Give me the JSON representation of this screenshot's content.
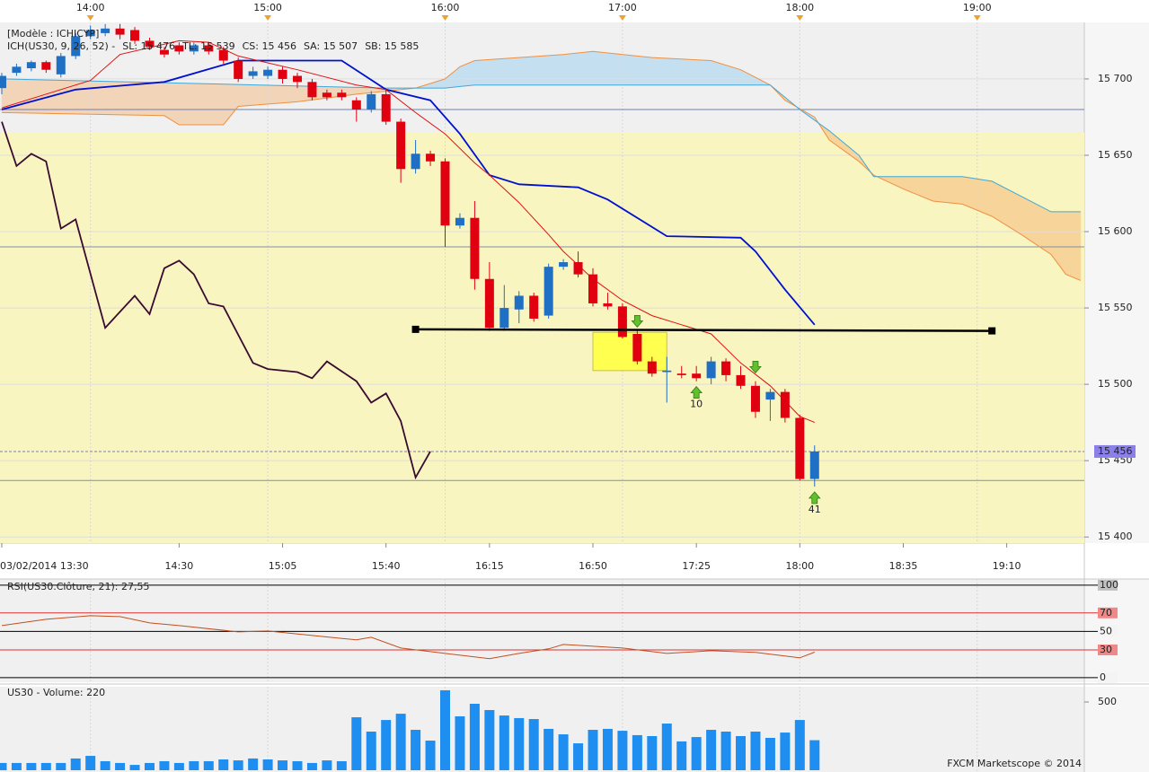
{
  "footer": "FXCM Marketscope © 2014",
  "chart_data": [
    {
      "type": "candlestick",
      "title": "[Modèle : ICHICYP]",
      "legend": [
        {
          "text": "ICH(US30, 9, 26, 52) -",
          "color": "#d00000"
        },
        {
          "text": "SL: 15 476",
          "color": "#d00000"
        },
        {
          "text": "TL: 15 539",
          "color": "#0000c0"
        },
        {
          "text": "CS: 15 456",
          "color": "#000000"
        },
        {
          "text": "SA: 15 507",
          "color": "#f08020"
        },
        {
          "text": "SB: 15 585",
          "color": "#30a0d0"
        }
      ],
      "up_color": "#1f6fc5",
      "down_color": "#e00010",
      "open": [
        15694,
        15704,
        15707,
        15711,
        15703,
        15715,
        15728,
        15730,
        15733,
        15732,
        15725,
        15719,
        15722,
        15718,
        15722,
        15719,
        15712,
        15702,
        15702,
        15706,
        15702,
        15698,
        15691,
        15691,
        15686,
        15680,
        15690,
        15672,
        15641,
        15651,
        15646,
        15604,
        15609,
        15569,
        15537,
        15549,
        15558,
        15545,
        15577,
        15580,
        15572,
        15553,
        15551,
        15533,
        15515,
        15508,
        15507,
        15507,
        15504,
        15515,
        15506,
        15499,
        15490,
        15495,
        15478,
        15438
      ],
      "high": [
        15704,
        15710,
        15712,
        15712,
        15717,
        15730,
        15735,
        15736,
        15736,
        15734,
        15727,
        15721,
        15724,
        15724,
        15724,
        15721,
        15714,
        15708,
        15708,
        15708,
        15704,
        15700,
        15693,
        15693,
        15688,
        15692,
        15694,
        15674,
        15660,
        15653,
        15648,
        15612,
        15620,
        15580,
        15565,
        15561,
        15560,
        15579,
        15582,
        15587,
        15576,
        15560,
        15553,
        15535,
        15518,
        15518,
        15512,
        15512,
        15518,
        15517,
        15512,
        15502,
        15497,
        15497,
        15480,
        15460
      ],
      "low": [
        15690,
        15702,
        15705,
        15704,
        15701,
        15713,
        15726,
        15728,
        15726,
        15723,
        15719,
        15714,
        15716,
        15716,
        15716,
        15710,
        15698,
        15700,
        15700,
        15697,
        15694,
        15686,
        15686,
        15686,
        15672,
        15678,
        15670,
        15632,
        15638,
        15643,
        15590,
        15602,
        15562,
        15535,
        15535,
        15540,
        15541,
        15543,
        15575,
        15570,
        15551,
        15549,
        15530,
        15513,
        15505,
        15488,
        15504,
        15502,
        15500,
        15502,
        15497,
        15478,
        15476,
        15475,
        15437,
        15433
      ],
      "close": [
        15702,
        15708,
        15711,
        15706,
        15715,
        15728,
        15732,
        15733,
        15729,
        15725,
        15721,
        15716,
        15718,
        15722,
        15718,
        15712,
        15700,
        15705,
        15706,
        15700,
        15698,
        15688,
        15688,
        15688,
        15680,
        15690,
        15672,
        15641,
        15651,
        15646,
        15604,
        15609,
        15569,
        15537,
        15550,
        15558,
        15543,
        15577,
        15580,
        15572,
        15553,
        15551,
        15531,
        15515,
        15507,
        15509,
        15506,
        15504,
        15515,
        15506,
        15499,
        15482,
        15495,
        15478,
        15438,
        15456
      ],
      "series": [
        {
          "name": "SA",
          "color": "#f09040",
          "x": [
            0,
            11,
            12,
            15,
            16,
            20,
            24,
            28,
            30,
            31,
            32,
            38,
            40,
            44,
            48,
            50,
            52,
            53,
            55,
            56,
            58,
            59,
            61,
            63,
            65,
            67,
            69,
            71,
            72,
            73
          ],
          "values": [
            15678,
            15676,
            15670,
            15670,
            15682,
            15685,
            15690,
            15694,
            15700,
            15708,
            15712,
            15716,
            15718,
            15714,
            15712,
            15706,
            15696,
            15686,
            15675,
            15660,
            15646,
            15637,
            15628,
            15620,
            15618,
            15610,
            15598,
            15585,
            15572,
            15568
          ]
        },
        {
          "name": "SB",
          "color": "#40a8d8",
          "x": [
            0,
            26,
            30,
            32,
            52,
            54,
            56,
            58,
            59,
            65,
            67,
            71,
            73
          ],
          "values": [
            15700,
            15694,
            15694,
            15696,
            15696,
            15680,
            15666,
            15650,
            15636,
            15636,
            15633,
            15613,
            15613
          ]
        },
        {
          "name": "CS",
          "color": "#3a0a30",
          "x": [
            0,
            1,
            2,
            3,
            4,
            5,
            7,
            9,
            10,
            11,
            12,
            13,
            14,
            15,
            17,
            18,
            20,
            21,
            22,
            24,
            25,
            26,
            27,
            28,
            29
          ],
          "values": [
            15672,
            15643,
            15651,
            15646,
            15602,
            15608,
            15537,
            15558,
            15546,
            15576,
            15581,
            15572,
            15553,
            15551,
            15514,
            15510,
            15508,
            15504,
            15515,
            15502,
            15488,
            15494,
            15476,
            15439,
            15456
          ]
        },
        {
          "name": "TL",
          "color": "#0010d0",
          "x": [
            0,
            5,
            11,
            16,
            23,
            26,
            29,
            31,
            33,
            35,
            39,
            41,
            45,
            50,
            51,
            53,
            55
          ],
          "values": [
            15680,
            15693,
            15698,
            15712,
            15712,
            15693,
            15686,
            15664,
            15637,
            15631,
            15629,
            15621,
            15597,
            15596,
            15587,
            15562,
            15539
          ]
        },
        {
          "name": "SL",
          "color": "#e01010",
          "x": [
            0,
            6,
            8,
            12,
            14,
            16,
            20,
            24,
            26,
            28,
            30,
            32,
            33,
            35,
            37,
            38,
            40,
            42,
            44,
            46,
            48,
            50,
            52,
            54,
            55
          ],
          "values": [
            15681,
            15699,
            15716,
            15725,
            15724,
            15715,
            15706,
            15696,
            15693,
            15678,
            15664,
            15645,
            15637,
            15619,
            15598,
            15587,
            15569,
            15555,
            15545,
            15539,
            15533,
            15514,
            15499,
            15479,
            15475
          ]
        }
      ],
      "band_top": 15665,
      "band_color": "#f8f5c0",
      "hlines": [
        {
          "value": 15680,
          "color": "#7080b0"
        },
        {
          "value": 15590,
          "color": "#8090a8"
        },
        {
          "value": 15437,
          "color": "#8090a8"
        }
      ],
      "last": {
        "value": 15456,
        "label": "15 456",
        "color": "#8a80e8"
      },
      "trendline": {
        "x": [
          28,
          67
        ],
        "values": [
          15536,
          15535
        ]
      },
      "highlight": {
        "x": [
          40,
          45
        ],
        "values": [
          15534,
          15509
        ],
        "color": "#ffff50"
      },
      "signals": [
        {
          "x": 43,
          "value": 15541,
          "direction": "down"
        },
        {
          "x": 51,
          "value": 15511,
          "direction": "down"
        },
        {
          "x": 47,
          "value": 15495,
          "direction": "up",
          "label": "10"
        },
        {
          "x": 55,
          "value": 15426,
          "direction": "up",
          "label": "41"
        }
      ],
      "xlim": [
        -0.12,
        73.25
      ],
      "ylim": [
        15396,
        15737
      ],
      "yticks": [
        {
          "value": 15400,
          "label": "15 400"
        },
        {
          "value": 15450,
          "label": "15 450"
        },
        {
          "value": 15500,
          "label": "15 500"
        },
        {
          "value": 15550,
          "label": "15 550"
        },
        {
          "value": 15600,
          "label": "15 600"
        },
        {
          "value": 15650,
          "label": "15 650"
        },
        {
          "value": 15700,
          "label": "15 700"
        }
      ],
      "xticks": [
        {
          "value": 0,
          "label": "03/02/2014 13:30"
        },
        {
          "value": 12,
          "label": "14:30"
        },
        {
          "value": 19,
          "label": "15:05"
        },
        {
          "value": 26,
          "label": "15:40"
        },
        {
          "value": 33,
          "label": "16:15"
        },
        {
          "value": 40,
          "label": "16:50"
        },
        {
          "value": 47,
          "label": "17:25"
        },
        {
          "value": 54,
          "label": "18:00"
        },
        {
          "value": 61,
          "label": "18:35"
        },
        {
          "value": 68,
          "label": "19:10"
        }
      ],
      "top_xticks": [
        {
          "value": 6,
          "label": "14:00"
        },
        {
          "value": 18,
          "label": "15:00"
        },
        {
          "value": 30,
          "label": "16:00"
        },
        {
          "value": 42,
          "label": "17:00"
        },
        {
          "value": 54,
          "label": "18:00"
        },
        {
          "value": 66,
          "label": "19:00"
        }
      ],
      "grid": true
    },
    {
      "type": "line",
      "title": "RSI(US30.Clôture, 21): 27,55",
      "title_color": "#d04020",
      "line": {
        "color": "#c05020",
        "x": [
          0,
          3,
          6,
          8,
          10,
          12,
          16,
          18,
          21,
          24,
          25,
          27,
          30,
          33,
          35,
          37,
          38,
          42,
          45,
          48,
          51,
          54,
          55
        ],
        "values": [
          56.3,
          63.1,
          67,
          66,
          59.2,
          56.3,
          49.5,
          50.5,
          45.6,
          40.8,
          43.7,
          32,
          26.2,
          20.4,
          26.2,
          31.1,
          35.9,
          32,
          26.2,
          29.1,
          27.2,
          21.4,
          27.55
        ]
      },
      "xlim": [
        -0.12,
        73.25
      ],
      "ylim": [
        -5,
        106.7
      ],
      "yticks": [
        0,
        30,
        50,
        70,
        100
      ],
      "tick_colors": [
        "#000000",
        "#e03030",
        "#000000",
        "#e03030",
        "#000000"
      ],
      "tick_box_colors": [
        "#f4f4f4",
        "#f08888",
        "#f4f4f4",
        "#f08888",
        "#c0c0c0"
      ]
    },
    {
      "type": "bar",
      "title": "US30 - Volume: 220",
      "title_color": "#2050c0",
      "color": "#1e8ff0",
      "values": [
        53,
        53,
        53,
        53,
        53,
        86,
        105,
        66,
        53,
        39,
        53,
        66,
        53,
        66,
        66,
        79,
        72,
        86,
        79,
        72,
        66,
        53,
        72,
        66,
        388,
        283,
        368,
        414,
        296,
        217,
        586,
        395,
        487,
        441,
        401,
        382,
        375,
        303,
        263,
        197,
        296,
        303,
        289,
        257,
        250,
        342,
        211,
        243,
        296,
        283,
        250,
        283,
        237,
        276,
        368,
        220
      ],
      "xlim": [
        -0.12,
        73.25
      ],
      "ylim": [
        0,
        612
      ],
      "yticks": [
        500
      ]
    }
  ]
}
